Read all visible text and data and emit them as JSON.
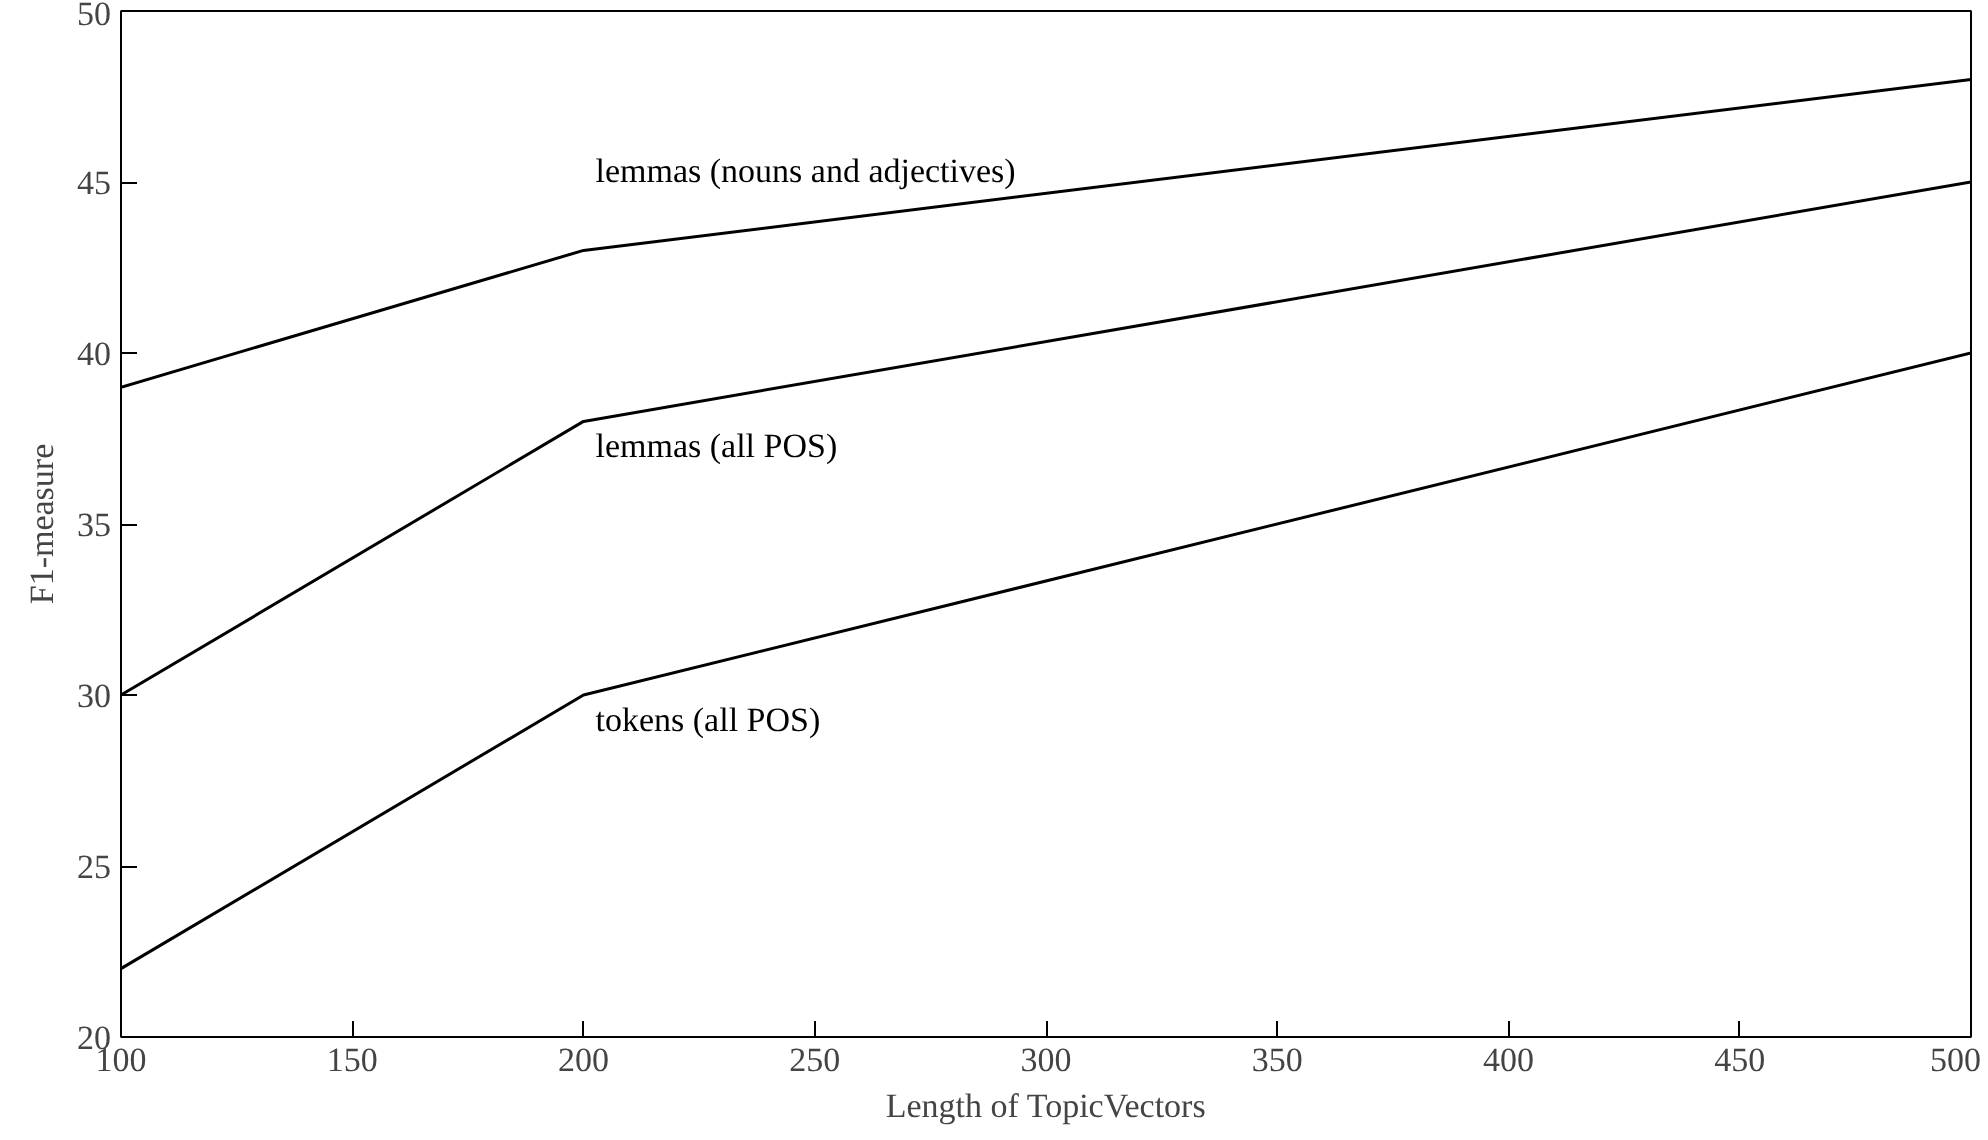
{
  "chart_data": {
    "type": "line",
    "xlabel": "Length of TopicVectors",
    "ylabel": "F1-measure",
    "x": [
      100,
      200,
      500
    ],
    "series": [
      {
        "name": "lemmas (nouns and adjectives)",
        "color": "#000000",
        "values": [
          39,
          43,
          48
        ]
      },
      {
        "name": "lemmas (all POS)",
        "color": "#000000",
        "values": [
          30,
          38,
          45
        ]
      },
      {
        "name": "tokens (all POS)",
        "color": "#000000",
        "values": [
          22,
          30,
          40
        ]
      }
    ],
    "xlim": [
      100,
      500
    ],
    "ylim": [
      20,
      50
    ],
    "xticks": [
      100,
      150,
      200,
      250,
      300,
      350,
      400,
      450,
      500
    ],
    "yticks": [
      20,
      25,
      30,
      35,
      40,
      45,
      50
    ],
    "grid": false,
    "legend": false,
    "marker": "none",
    "line_style": "solid"
  }
}
